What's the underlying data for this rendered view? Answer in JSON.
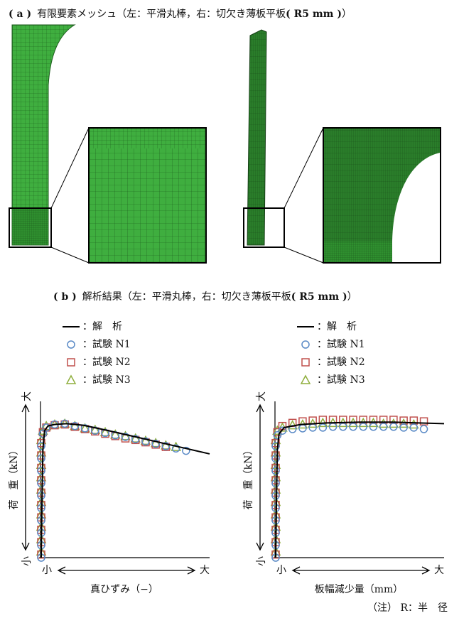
{
  "figure_a": {
    "label": "( a )",
    "text": "有限要素メッシュ（左：平滑丸棒，右：切欠き薄板平板",
    "bold": "( R5 mm )",
    "end": "）"
  },
  "figure_b": {
    "label": "( b )",
    "text": "解析結果（左：平滑丸棒，右：切欠き薄板平板",
    "bold": "( R5 mm )",
    "end": "）"
  },
  "note": "（注） R：半　径",
  "chart_data": [
    {
      "type": "line",
      "xlabel": "真ひずみ（−）",
      "ylabel": "荷　重（kN）",
      "x_ends": [
        "小",
        "大"
      ],
      "y_ends": [
        "小",
        "大"
      ],
      "xlim": [
        0,
        100
      ],
      "ylim": [
        0,
        100
      ],
      "series": [
        {
          "name": "：解　析",
          "color": "#000000",
          "marker": "line",
          "x": [
            0,
            0.5,
            1,
            2,
            4,
            8,
            15,
            25,
            40,
            60,
            80,
            100
          ],
          "values": [
            0,
            40,
            70,
            82,
            85,
            86,
            86.5,
            85.5,
            82,
            77,
            72,
            67
          ]
        },
        {
          "name": "：試験 N1",
          "color": "#5a8ac6",
          "marker": "circle",
          "x": [
            0,
            0,
            0,
            0,
            0,
            0,
            0,
            0,
            0,
            0,
            1,
            3,
            8,
            14,
            20,
            26,
            32,
            38,
            44,
            50,
            56,
            62,
            68,
            74,
            80,
            86
          ],
          "values": [
            0,
            8,
            16,
            24,
            32,
            40,
            48,
            56,
            64,
            72,
            80,
            84,
            86,
            86.5,
            85,
            83.5,
            82,
            80.5,
            79,
            78,
            76.5,
            75,
            73.5,
            72,
            70.5,
            69
          ]
        },
        {
          "name": "：試験 N2",
          "color": "#c0504d",
          "marker": "square",
          "x": [
            0,
            0,
            0,
            0,
            0,
            0,
            0,
            0,
            0,
            0,
            1,
            3,
            8,
            14,
            20,
            26,
            32,
            38,
            44,
            50,
            56,
            62,
            68,
            74
          ],
          "values": [
            2,
            10,
            18,
            26,
            34,
            42,
            50,
            58,
            66,
            74,
            81,
            84,
            85.5,
            86,
            84.5,
            83,
            81.5,
            80,
            78.5,
            77,
            76,
            74.5,
            73,
            71.5
          ]
        },
        {
          "name": "：試験 N3",
          "color": "#8fae3d",
          "marker": "triangle",
          "x": [
            0,
            0,
            0,
            0,
            0,
            0,
            0,
            0,
            0,
            0,
            1,
            3,
            8,
            14,
            20,
            26,
            32,
            38,
            44,
            50,
            56,
            62,
            68,
            74,
            80
          ],
          "values": [
            4,
            12,
            20,
            28,
            36,
            44,
            52,
            60,
            68,
            76,
            82,
            85,
            86,
            86.5,
            85,
            83.5,
            82.5,
            81,
            79.5,
            78.5,
            77,
            75.5,
            74,
            72.5,
            71.5
          ]
        }
      ]
    },
    {
      "type": "line",
      "xlabel": "板幅減少量（mm）",
      "ylabel": "荷　重（kN）",
      "x_ends": [
        "小",
        "大"
      ],
      "y_ends": [
        "小",
        "大"
      ],
      "xlim": [
        0,
        100
      ],
      "ylim": [
        0,
        100
      ],
      "series": [
        {
          "name": "：解　析",
          "color": "#000000",
          "marker": "line",
          "x": [
            0,
            0.5,
            1,
            2,
            5,
            15,
            30,
            50,
            70,
            85,
            100
          ],
          "values": [
            0,
            40,
            70,
            80,
            84,
            86,
            87,
            87.5,
            87.5,
            87,
            86.5
          ]
        },
        {
          "name": "：試験 N1",
          "color": "#5a8ac6",
          "marker": "circle",
          "x": [
            0,
            0,
            0,
            0,
            0,
            0,
            0,
            0,
            0,
            0,
            1,
            4,
            10,
            16,
            22,
            28,
            34,
            40,
            46,
            52,
            58,
            64,
            70,
            76,
            82,
            88
          ],
          "values": [
            0,
            8,
            16,
            24,
            32,
            40,
            48,
            56,
            64,
            72,
            79,
            82,
            83,
            83.5,
            84,
            84,
            84.5,
            84.5,
            84.5,
            84.5,
            84.5,
            84.5,
            84.5,
            84,
            84,
            83
          ]
        },
        {
          "name": "：試験 N2",
          "color": "#c0504d",
          "marker": "square",
          "x": [
            0,
            0,
            0,
            0,
            0,
            0,
            0,
            0,
            0,
            0,
            1,
            4,
            10,
            16,
            22,
            28,
            34,
            40,
            46,
            52,
            58,
            64,
            70,
            76,
            82,
            88
          ],
          "values": [
            2,
            10,
            18,
            26,
            34,
            42,
            50,
            58,
            66,
            74,
            81,
            85,
            87,
            88,
            88.5,
            89,
            89,
            89,
            89,
            89,
            89,
            89,
            89,
            88.5,
            88.5,
            88
          ]
        },
        {
          "name": "：試験 N3",
          "color": "#8fae3d",
          "marker": "triangle",
          "x": [
            0,
            0,
            0,
            0,
            0,
            0,
            0,
            0,
            0,
            0,
            1,
            4,
            10,
            16,
            22,
            28,
            34,
            40,
            46,
            52,
            58,
            64,
            70,
            76,
            82
          ],
          "values": [
            4,
            12,
            20,
            28,
            36,
            44,
            52,
            60,
            68,
            76,
            82,
            84,
            85.5,
            86,
            86.5,
            87,
            87,
            87,
            87,
            87,
            87,
            86.5,
            86.5,
            86.5,
            86
          ]
        }
      ]
    }
  ]
}
